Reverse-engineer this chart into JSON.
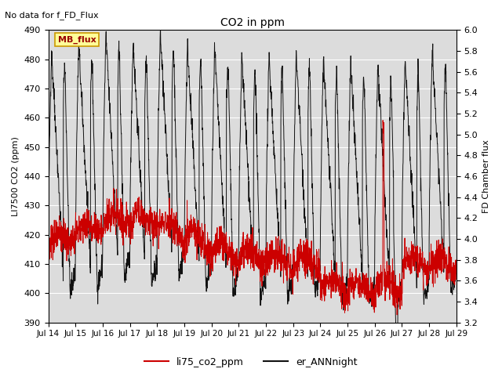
{
  "title": "CO2 in ppm",
  "top_left_text": "No data for f_FD_Flux",
  "annotation_text": "MB_flux",
  "ylabel_left": "LI7500 CO2 (ppm)",
  "ylabel_right": "FD Chamber flux",
  "ylim_left": [
    390,
    490
  ],
  "ylim_right": [
    3.2,
    6.0
  ],
  "yticks_left": [
    390,
    400,
    410,
    420,
    430,
    440,
    450,
    460,
    470,
    480,
    490
  ],
  "yticks_right": [
    3.2,
    3.4,
    3.6,
    3.8,
    4.0,
    4.2,
    4.4,
    4.6,
    4.8,
    5.0,
    5.2,
    5.4,
    5.6,
    5.8,
    6.0
  ],
  "xtick_labels": [
    "Jul 14",
    "Jul 15",
    "Jul 16",
    "Jul 17",
    "Jul 18",
    "Jul 19",
    "Jul 20",
    "Jul 21",
    "Jul 22",
    "Jul 23",
    "Jul 24",
    "Jul 25",
    "Jul 26",
    "Jul 27",
    "Jul 28",
    "Jul 29"
  ],
  "line1_color": "#cc0000",
  "line2_color": "#111111",
  "bg_color": "#dcdcdc",
  "legend_labels": [
    "li75_co2_ppm",
    "er_ANNnight"
  ],
  "n_days": 15,
  "points_per_day": 144,
  "figsize": [
    6.4,
    4.8
  ],
  "dpi": 100
}
